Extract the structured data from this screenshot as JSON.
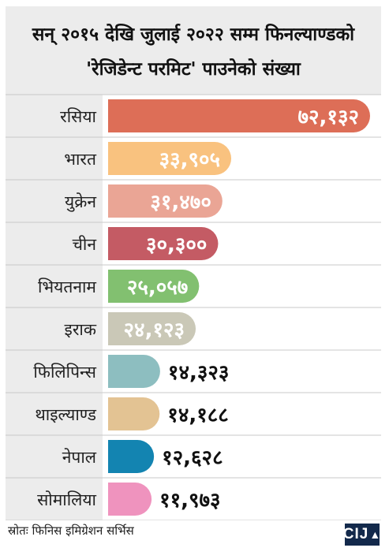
{
  "title": {
    "line1": "सन् २०१५ देखि जुलाई २०२२ सम्म फिनल्याण्डको",
    "line2": "'रेजिडेन्ट परमिट' पाउनेको संख्या"
  },
  "source": "स्रोतः  फिनिस  इमिग्रेशन  सर्भिस",
  "logo": {
    "text": "CIJ",
    "icon": "up-arrow-icon"
  },
  "chart_data": {
    "type": "bar",
    "orientation": "horizontal",
    "title": "सन् २०१५ देखि जुलाई २०२२ सम्म फिनल्याण्डको 'रेजिडेन्ट परमिट' पाउनेको संख्या",
    "categories": [
      "रसिया",
      "भारत",
      "युक्रेन",
      "चीन",
      "भियतनाम",
      "इराक",
      "फिलिपिन्स",
      "थाइल्याण्ड",
      "नेपाल",
      "सोमालिया"
    ],
    "values": [
      72132,
      33905,
      31470,
      30300,
      25057,
      24123,
      14323,
      14188,
      12628,
      11973
    ],
    "labels": [
      "७२,१३२",
      "३३,९०५",
      "३१,४७०",
      "३०,३००",
      "२५,०५७",
      "२४,१२३",
      "१४,३२३",
      "१४,१८८",
      "१२,६२८",
      "११,९७३"
    ],
    "colors": [
      "#dd6e57",
      "#f9c27f",
      "#eaa595",
      "#c45b64",
      "#82c070",
      "#cac8b7",
      "#8dbec0",
      "#e3c393",
      "#1384b1",
      "#ef93be"
    ],
    "label_colors_inside": "#ffffff",
    "label_color_outside": "#111111",
    "grid": "horizontal-separators",
    "legend": "none"
  }
}
